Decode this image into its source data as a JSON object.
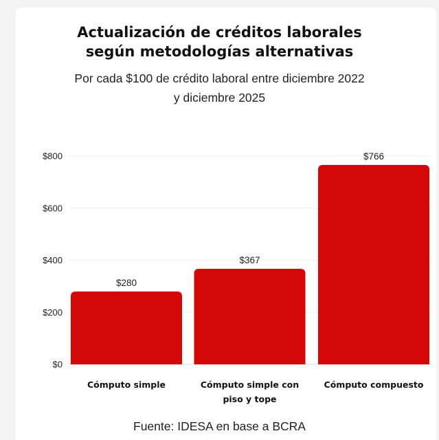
{
  "chart_data": {
    "type": "bar",
    "title_lines": [
      "Actualización de créditos laborales",
      "según metodologías alternativas"
    ],
    "subtitle_lines": [
      "Por cada $100 de crédito laboral entre diciembre 2022",
      "y diciembre 2025"
    ],
    "categories": [
      [
        "Cómputo simple"
      ],
      [
        "Cómputo simple con",
        "piso y tope"
      ],
      [
        "Cómputo compuesto"
      ]
    ],
    "values": [
      280,
      367,
      766
    ],
    "value_labels": [
      "$280",
      "$367",
      "$766"
    ],
    "y_ticks": [
      0,
      200,
      400,
      600,
      800
    ],
    "y_tick_labels": [
      "$0",
      "$200",
      "$400",
      "$600",
      "$800"
    ],
    "ylim": [
      0,
      800
    ],
    "xlabel": "",
    "ylabel": "",
    "grid": true,
    "bar_color": "#d40808",
    "source": "Fuente: IDESA en base a BCRA"
  }
}
